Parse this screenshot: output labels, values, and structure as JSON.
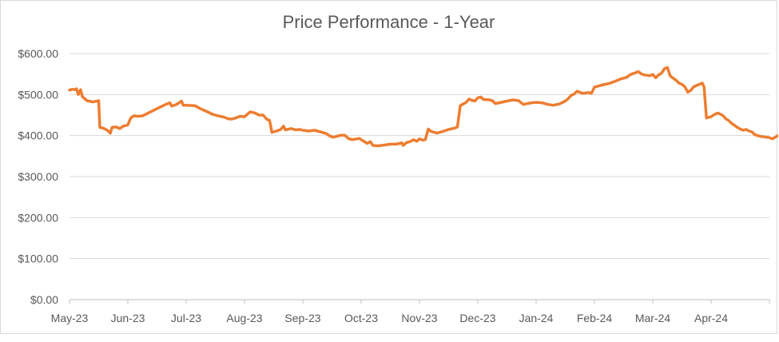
{
  "chart_data": {
    "type": "line",
    "title": "Price Performance - 1-Year",
    "xlabel": "",
    "ylabel": "",
    "ylim": [
      0,
      600
    ],
    "y_ticks": [
      "$0.00",
      "$100.00",
      "$200.00",
      "$300.00",
      "$400.00",
      "$500.00",
      "$600.00"
    ],
    "x_ticks": [
      "May-23",
      "Jun-23",
      "Jul-23",
      "Aug-23",
      "Sep-23",
      "Oct-23",
      "Nov-23",
      "Dec-23",
      "Jan-24",
      "Feb-24",
      "Mar-24",
      "Apr-24"
    ],
    "grid": "horizontal",
    "legend": "none",
    "line_color": "#ED7D31",
    "series": [
      {
        "values": [
          [
            0.0,
            511
          ],
          [
            0.05,
            513
          ],
          [
            0.09,
            512
          ],
          [
            0.12,
            514
          ],
          [
            0.15,
            500
          ],
          [
            0.19,
            512
          ],
          [
            0.22,
            495
          ],
          [
            0.3,
            485
          ],
          [
            0.4,
            482
          ],
          [
            0.5,
            485
          ],
          [
            0.52,
            420
          ],
          [
            0.58,
            418
          ],
          [
            0.65,
            413
          ],
          [
            0.7,
            406
          ],
          [
            0.73,
            420
          ],
          [
            0.8,
            421
          ],
          [
            0.86,
            417
          ],
          [
            0.92,
            423
          ],
          [
            0.98,
            425
          ],
          [
            1.0,
            426
          ],
          [
            1.05,
            443
          ],
          [
            1.1,
            448
          ],
          [
            1.17,
            447
          ],
          [
            1.25,
            448
          ],
          [
            1.35,
            455
          ],
          [
            1.45,
            462
          ],
          [
            1.55,
            469
          ],
          [
            1.65,
            476
          ],
          [
            1.72,
            480
          ],
          [
            1.75,
            472
          ],
          [
            1.82,
            475
          ],
          [
            1.88,
            480
          ],
          [
            1.92,
            484
          ],
          [
            1.95,
            474
          ],
          [
            2.0,
            474
          ],
          [
            2.15,
            473
          ],
          [
            2.25,
            465
          ],
          [
            2.35,
            459
          ],
          [
            2.45,
            452
          ],
          [
            2.55,
            448
          ],
          [
            2.65,
            445
          ],
          [
            2.72,
            441
          ],
          [
            2.78,
            440
          ],
          [
            2.85,
            443
          ],
          [
            2.92,
            447
          ],
          [
            3.0,
            446
          ],
          [
            3.1,
            458
          ],
          [
            3.18,
            455
          ],
          [
            3.25,
            450
          ],
          [
            3.32,
            450
          ],
          [
            3.38,
            440
          ],
          [
            3.43,
            437
          ],
          [
            3.47,
            408
          ],
          [
            3.55,
            411
          ],
          [
            3.62,
            415
          ],
          [
            3.67,
            423
          ],
          [
            3.7,
            414
          ],
          [
            3.8,
            417
          ],
          [
            3.88,
            414
          ],
          [
            3.95,
            415
          ],
          [
            4.0,
            413
          ],
          [
            4.1,
            411
          ],
          [
            4.2,
            413
          ],
          [
            4.3,
            409
          ],
          [
            4.4,
            405
          ],
          [
            4.45,
            400
          ],
          [
            4.52,
            396
          ],
          [
            4.58,
            398
          ],
          [
            4.65,
            401
          ],
          [
            4.72,
            401
          ],
          [
            4.78,
            393
          ],
          [
            4.85,
            390
          ],
          [
            4.92,
            392
          ],
          [
            4.97,
            393
          ],
          [
            5.0,
            390
          ],
          [
            5.05,
            386
          ],
          [
            5.1,
            381
          ],
          [
            5.16,
            385
          ],
          [
            5.2,
            376
          ],
          [
            5.3,
            375
          ],
          [
            5.4,
            377
          ],
          [
            5.5,
            379
          ],
          [
            5.6,
            379
          ],
          [
            5.7,
            382
          ],
          [
            5.72,
            376
          ],
          [
            5.78,
            383
          ],
          [
            5.85,
            386
          ],
          [
            5.9,
            390
          ],
          [
            5.95,
            386
          ],
          [
            6.0,
            392
          ],
          [
            6.05,
            389
          ],
          [
            6.1,
            390
          ],
          [
            6.15,
            416
          ],
          [
            6.2,
            410
          ],
          [
            6.3,
            406
          ],
          [
            6.4,
            410
          ],
          [
            6.5,
            415
          ],
          [
            6.6,
            418
          ],
          [
            6.65,
            421
          ],
          [
            6.7,
            473
          ],
          [
            6.75,
            477
          ],
          [
            6.8,
            481
          ],
          [
            6.85,
            489
          ],
          [
            6.9,
            486
          ],
          [
            6.95,
            484
          ],
          [
            7.0,
            492
          ],
          [
            7.05,
            494
          ],
          [
            7.1,
            488
          ],
          [
            7.2,
            487
          ],
          [
            7.25,
            485
          ],
          [
            7.3,
            478
          ],
          [
            7.4,
            481
          ],
          [
            7.5,
            484
          ],
          [
            7.6,
            487
          ],
          [
            7.7,
            485
          ],
          [
            7.78,
            476
          ],
          [
            7.85,
            478
          ],
          [
            7.92,
            480
          ],
          [
            8.0,
            481
          ],
          [
            8.1,
            480
          ],
          [
            8.2,
            476
          ],
          [
            8.3,
            474
          ],
          [
            8.4,
            477
          ],
          [
            8.5,
            484
          ],
          [
            8.55,
            490
          ],
          [
            8.6,
            498
          ],
          [
            8.65,
            501
          ],
          [
            8.7,
            508
          ],
          [
            8.8,
            503
          ],
          [
            8.9,
            505
          ],
          [
            8.95,
            503
          ],
          [
            9.0,
            518
          ],
          [
            9.05,
            520
          ],
          [
            9.1,
            522
          ],
          [
            9.15,
            524
          ],
          [
            9.25,
            527
          ],
          [
            9.35,
            532
          ],
          [
            9.45,
            538
          ],
          [
            9.55,
            542
          ],
          [
            9.62,
            549
          ],
          [
            9.7,
            553
          ],
          [
            9.75,
            556
          ],
          [
            9.8,
            551
          ],
          [
            9.85,
            548
          ],
          [
            9.9,
            547
          ],
          [
            9.95,
            546
          ],
          [
            10.0,
            549
          ],
          [
            10.05,
            541
          ],
          [
            10.1,
            548
          ],
          [
            10.15,
            552
          ],
          [
            10.2,
            563
          ],
          [
            10.25,
            566
          ],
          [
            10.3,
            545
          ],
          [
            10.4,
            535
          ],
          [
            10.45,
            528
          ],
          [
            10.5,
            525
          ],
          [
            10.55,
            519
          ],
          [
            10.6,
            506
          ],
          [
            10.65,
            510
          ],
          [
            10.7,
            519
          ],
          [
            10.75,
            522
          ],
          [
            10.8,
            525
          ],
          [
            10.85,
            528
          ],
          [
            10.88,
            519
          ],
          [
            10.92,
            443
          ],
          [
            11.0,
            446
          ],
          [
            11.0,
            446
          ],
          [
            11.05,
            451
          ],
          [
            11.12,
            455
          ],
          [
            11.2,
            449
          ],
          [
            11.25,
            441
          ],
          [
            11.3,
            437
          ],
          [
            11.35,
            430
          ],
          [
            11.4,
            425
          ],
          [
            11.45,
            420
          ],
          [
            11.5,
            416
          ],
          [
            11.55,
            413
          ],
          [
            11.6,
            415
          ],
          [
            11.65,
            411
          ],
          [
            11.7,
            409
          ],
          [
            11.75,
            402
          ],
          [
            11.8,
            400
          ],
          [
            11.85,
            398
          ],
          [
            11.9,
            397
          ],
          [
            11.95,
            396
          ],
          [
            12.0,
            395
          ],
          [
            12.05,
            392
          ],
          [
            12.12,
            398
          ],
          [
            12.15,
            400
          ]
        ]
      }
    ]
  }
}
